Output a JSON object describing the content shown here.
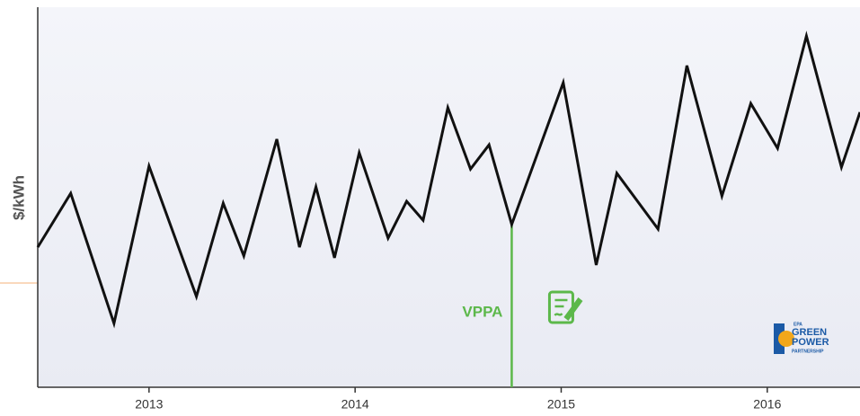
{
  "chart_data": {
    "type": "line",
    "ylabel": "$/kWh",
    "x": [
      2012.46,
      2012.62,
      2012.83,
      2013.0,
      2013.23,
      2013.36,
      2013.46,
      2013.62,
      2013.73,
      2013.81,
      2013.9,
      2014.02,
      2014.16,
      2014.25,
      2014.33,
      2014.45,
      2014.56,
      2014.65,
      2014.76,
      2015.01,
      2015.17,
      2015.27,
      2015.47,
      2015.61,
      2015.78,
      2015.92,
      2016.05,
      2016.19,
      2016.36,
      2016.45
    ],
    "values": [
      36.7,
      50.9,
      16.6,
      58.1,
      23.7,
      48.3,
      34.4,
      65.2,
      36.7,
      52.6,
      33.9,
      61.6,
      39.1,
      48.8,
      43.8,
      73.5,
      57.3,
      63.7,
      42.7,
      80.1,
      32.0,
      56.2,
      41.5,
      84.6,
      50.2,
      74.6,
      62.8,
      92.4,
      57.8,
      72.3
    ],
    "color": "#111111",
    "xlim": [
      2012.46,
      2016.45
    ],
    "xticks": [
      2013,
      2014,
      2015,
      2016
    ],
    "ylim": [
      0,
      100
    ],
    "annotation": {
      "text": "VPPA",
      "x": 2014.76,
      "y": 42.7,
      "color": "#5cb84a"
    },
    "logo": {
      "top": "EPA",
      "line1": "GREEN",
      "line2": "POWER",
      "bottom": "PARTNERSHIP"
    }
  }
}
